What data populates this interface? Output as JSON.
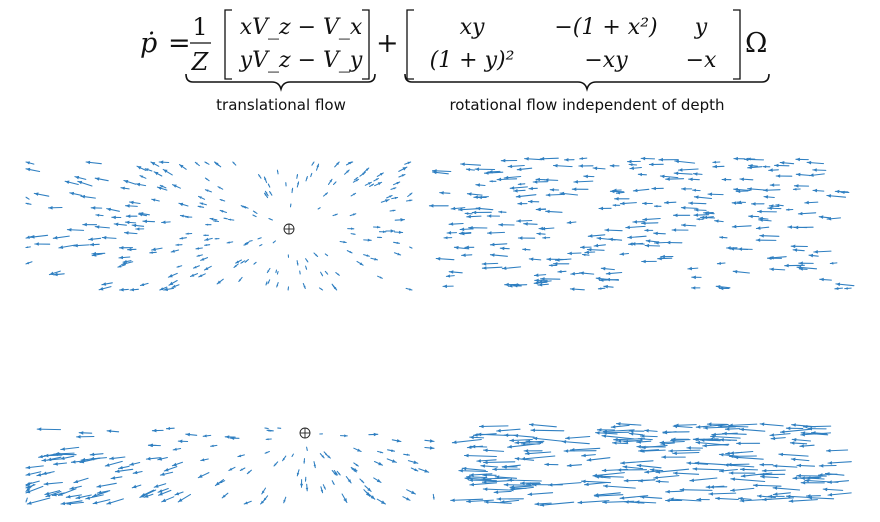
{
  "equation": {
    "lhs": "ṗ",
    "equals": "=",
    "frac_numerator": "1",
    "frac_denominator": "Z",
    "translational_vector": [
      "xV_z − V_x",
      "yV_z − V_y"
    ],
    "plus": "+",
    "rotation_matrix": [
      [
        "xy",
        "−(1 + x²)",
        "y"
      ],
      [
        "(1 + y)²",
        "−xy",
        "−x"
      ]
    ],
    "omega": "Ω"
  },
  "labels": {
    "translational": "translational flow",
    "rotational": "rotational flow independent of depth"
  },
  "panels": [
    {
      "id": "top-left",
      "kind": "translational",
      "foe_marker": "⊕"
    },
    {
      "id": "top-right",
      "kind": "rotational"
    },
    {
      "id": "bottom-left",
      "kind": "translational",
      "foe_marker": "⊕"
    },
    {
      "id": "bottom-right",
      "kind": "rotational"
    }
  ],
  "colors": {
    "arrow": "#2f7fc1",
    "text": "#111111",
    "background": "#ffffff"
  }
}
